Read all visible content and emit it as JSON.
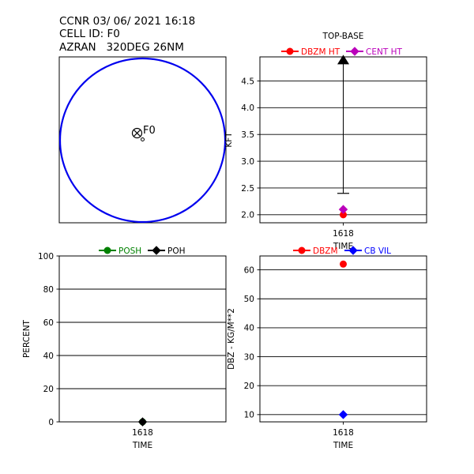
{
  "header": {
    "line1": "CCNR 03/ 06/ 2021 16:18",
    "line2": "CELL ID: F0",
    "line3": "AZRAN   320DEG 26NM"
  },
  "colors": {
    "circle": "#0000ee",
    "dbzm": "#ff0000",
    "cent": "#bb00bb",
    "posh": "#008000",
    "poh": "#000000",
    "vil": "#0000ff"
  },
  "chart_data": [
    {
      "id": "cell-map",
      "type": "scatter",
      "cell_label": "F0",
      "markers": [
        "circle-x",
        "small-circle"
      ]
    },
    {
      "id": "height",
      "type": "line",
      "title": "TOP-BASE",
      "ylabel": "KFT",
      "xlabel": "TIME",
      "categories": [
        "1618"
      ],
      "ylim": [
        1.85,
        4.95
      ],
      "yticks": [
        2.0,
        2.5,
        3.0,
        3.5,
        4.0,
        4.5
      ],
      "top_base": {
        "top": 4.9,
        "base": 2.4
      },
      "series": [
        {
          "name": "DBZM HT",
          "color": "#ff0000",
          "marker": "circle",
          "values": [
            2.0
          ]
        },
        {
          "name": "CENT HT",
          "color": "#bb00bb",
          "marker": "diamond",
          "values": [
            2.1
          ]
        }
      ],
      "grid": true,
      "legend": "top-center"
    },
    {
      "id": "hail",
      "type": "line",
      "title": "",
      "ylabel": "PERCENT",
      "xlabel": "TIME",
      "categories": [
        "1618"
      ],
      "ylim": [
        0,
        100
      ],
      "yticks": [
        0,
        20,
        40,
        60,
        80,
        100
      ],
      "series": [
        {
          "name": "POSH",
          "color": "#008000",
          "marker": "circle",
          "values": [
            0
          ]
        },
        {
          "name": "POH",
          "color": "#000000",
          "marker": "diamond",
          "values": [
            0
          ]
        }
      ],
      "grid": true,
      "legend": "top-center"
    },
    {
      "id": "reflectivity",
      "type": "line",
      "title": "",
      "ylabel": "DBZ - KG/M**2",
      "xlabel": "TIME",
      "categories": [
        "1618"
      ],
      "ylim": [
        7.5,
        64.8
      ],
      "yticks": [
        10,
        20,
        30,
        40,
        50,
        60
      ],
      "series": [
        {
          "name": "DBZM",
          "color": "#ff0000",
          "marker": "circle",
          "values": [
            62
          ]
        },
        {
          "name": "CB VIL",
          "color": "#0000ff",
          "marker": "diamond",
          "values": [
            10
          ]
        }
      ],
      "grid": true,
      "legend": "top-center"
    }
  ]
}
